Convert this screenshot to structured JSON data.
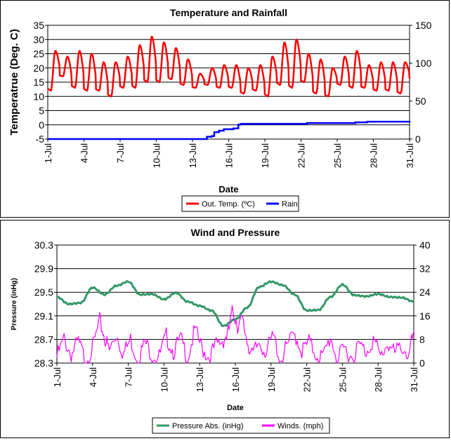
{
  "chart_data": [
    {
      "type": "line",
      "title": "Temperature and Rainfall",
      "xlabel": "Date",
      "ylabel": "Temperatrue (Deg. C)",
      "y2label": "",
      "ylim": [
        -5,
        35
      ],
      "y2lim": [
        0,
        150
      ],
      "yticks": [
        "-5",
        "0",
        "5",
        "10",
        "15",
        "20",
        "25",
        "30",
        "35"
      ],
      "y2ticks": [
        "0",
        "50",
        "100",
        "150"
      ],
      "xticks": [
        "1-Jul",
        "4-Jul",
        "7-Jul",
        "10-Jul",
        "13-Jul",
        "16-Jul",
        "19-Jul",
        "22-Jul",
        "25-Jul",
        "28-Jul",
        "31-Jul"
      ],
      "x_range_days": [
        1,
        31
      ],
      "grid": true,
      "legend_position": "bottom",
      "series": [
        {
          "name": "Out. Temp. (ºC)",
          "axis": "left",
          "color": "#ff0000",
          "daily_max": [
            26,
            24,
            26,
            25,
            22,
            22,
            24,
            28,
            31,
            29,
            27,
            23,
            18,
            20,
            21,
            21,
            20,
            21,
            24,
            29,
            30,
            25,
            23,
            20,
            24,
            26,
            21,
            22,
            22,
            22,
            21
          ],
          "daily_min": [
            12,
            17,
            13,
            12,
            12,
            10,
            13,
            13,
            15,
            15,
            16,
            14,
            13,
            14,
            13,
            13,
            11,
            12,
            10,
            14,
            13,
            15,
            11,
            10,
            14,
            13,
            13,
            12,
            12,
            11,
            16
          ]
        },
        {
          "name": "Rain",
          "axis": "right",
          "color": "#0000ff",
          "x": [
            1,
            13.0,
            14.2,
            14.6,
            14.8,
            15.2,
            15.6,
            16.4,
            16.8,
            17.0,
            22.5,
            26.5,
            27.5,
            31
          ],
          "values": [
            0,
            0,
            3,
            4,
            9,
            11,
            13,
            14,
            19,
            20,
            21,
            22,
            23,
            24
          ]
        }
      ]
    },
    {
      "type": "line",
      "title": "Wind and Pressure",
      "xlabel": "Date",
      "ylabel": "Pressure (inHg)",
      "ylim": [
        28.3,
        30.3
      ],
      "y2lim": [
        0,
        40
      ],
      "yticks": [
        "28.3",
        "28.7",
        "29.1",
        "29.5",
        "29.9",
        "30.3"
      ],
      "y2ticks": [
        "0",
        "8",
        "16",
        "24",
        "32",
        "40"
      ],
      "xticks": [
        "1-Jul",
        "4-Jul",
        "7-Jul",
        "10-Jul",
        "13-Jul",
        "16-Jul",
        "19-Jul",
        "22-Jul",
        "25-Jul",
        "28-Jul",
        "31-Jul"
      ],
      "x_range_days": [
        1,
        31
      ],
      "grid": true,
      "legend_position": "bottom",
      "series": [
        {
          "name": "Pressure Abs. (inHg)",
          "axis": "left",
          "color": "#339966",
          "x": [
            1,
            2,
            3,
            4,
            5,
            6,
            7,
            8,
            9,
            10,
            11,
            12,
            13,
            14,
            15,
            16,
            17,
            18,
            19,
            20,
            21,
            22,
            23,
            24,
            25,
            26,
            27,
            28,
            29,
            30,
            31
          ],
          "values": [
            29.42,
            29.3,
            29.32,
            29.58,
            29.46,
            29.61,
            29.68,
            29.46,
            29.47,
            29.38,
            29.49,
            29.34,
            29.27,
            29.19,
            28.93,
            29.04,
            29.24,
            29.59,
            29.68,
            29.62,
            29.46,
            29.19,
            29.2,
            29.42,
            29.63,
            29.45,
            29.43,
            29.47,
            29.42,
            29.41,
            29.34
          ]
        },
        {
          "name": "Winds. (mph)",
          "axis": "right",
          "color": "#ff00ff",
          "x": [
            1,
            1.6,
            2.2,
            2.8,
            3.4,
            4.0,
            4.6,
            5.0,
            5.4,
            6.0,
            6.6,
            7.2,
            7.8,
            8.4,
            9.0,
            9.6,
            10.2,
            10.8,
            11.4,
            12.0,
            12.6,
            13.2,
            13.8,
            14.4,
            15.0,
            15.4,
            15.8,
            16.2,
            16.6,
            17.0,
            17.4,
            18.0,
            18.6,
            19.2,
            19.8,
            20.4,
            21.0,
            21.6,
            22.2,
            22.8,
            23.4,
            24.0,
            24.6,
            25.2,
            25.8,
            26.4,
            27.0,
            27.6,
            28.2,
            28.8,
            29.4,
            30.0,
            30.6,
            31
          ],
          "values": [
            2,
            8,
            3,
            7,
            1,
            5,
            14,
            9,
            4,
            10,
            3,
            8,
            1,
            7,
            3,
            2,
            9,
            4,
            8,
            2,
            11,
            5,
            2,
            6,
            8,
            10,
            18,
            13,
            14,
            8,
            2,
            7,
            4,
            9,
            1,
            6,
            10,
            4,
            7,
            3,
            2,
            9,
            1,
            5,
            2,
            6,
            4,
            8,
            2,
            7,
            3,
            6,
            2,
            11
          ]
        }
      ]
    }
  ]
}
